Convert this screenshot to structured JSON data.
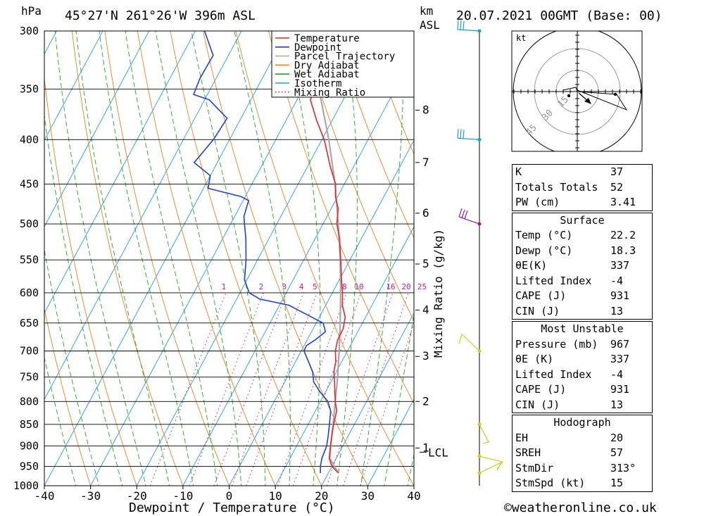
{
  "header": {
    "pressure_unit": "hPa",
    "location": "45°27'N  261°26'W  396m  ASL",
    "height_unit": "km",
    "height_ref": "ASL",
    "datetime": "20.07.2021  00GMT  (Base: 00)"
  },
  "colors": {
    "temperature": "#e8242a",
    "dewpoint": "#1f3fd6",
    "parcel": "#a9a9a9",
    "dry_adiabat": "#e8821e",
    "wet_adiabat": "#1ea81e",
    "isotherm": "#1f9fe0",
    "mixing_ratio": "#c81a8c",
    "wind_cyan": "#1aa0d8",
    "wind_purple": "#8020a0",
    "wind_yellow": "#c8d020"
  },
  "chart_data": {
    "type": "skew-t",
    "xlabel": "Dewpoint / Temperature (°C)",
    "x_ticks": [
      -40,
      -30,
      -20,
      -10,
      0,
      10,
      20,
      30,
      40
    ],
    "xlim": [
      -40,
      40
    ],
    "pressure_ticks": [
      300,
      350,
      400,
      450,
      500,
      550,
      600,
      650,
      700,
      750,
      800,
      850,
      900,
      950,
      1000
    ],
    "plim": [
      1000,
      300
    ],
    "height_ticks": [
      {
        "label": "8",
        "p": 370
      },
      {
        "label": "7",
        "p": 425
      },
      {
        "label": "6",
        "p": 486
      },
      {
        "label": "5",
        "p": 556
      },
      {
        "label": "4",
        "p": 628
      },
      {
        "label": "3",
        "p": 710
      },
      {
        "label": "2",
        "p": 800
      },
      {
        "label": "1",
        "p": 905
      }
    ],
    "lcl_label": "LCL",
    "lcl_p": 915,
    "mixing_ratio_label": "Mixing Ratio (g/kg)",
    "mixing_ratio_values": [
      "1",
      "2",
      "3",
      "4",
      "5",
      "8",
      "10",
      "16",
      "20",
      "25"
    ],
    "legend": [
      {
        "name": "Temperature",
        "style": "solid",
        "color": "#e8242a"
      },
      {
        "name": "Dewpoint",
        "style": "solid",
        "color": "#1f3fd6"
      },
      {
        "name": "Parcel Trajectory",
        "style": "solid",
        "color": "#a9a9a9"
      },
      {
        "name": "Dry Adiabat",
        "style": "solid",
        "color": "#e8821e"
      },
      {
        "name": "Wet Adiabat",
        "style": "solid",
        "color": "#1ea81e"
      },
      {
        "name": "Isotherm",
        "style": "solid",
        "color": "#1f9fe0"
      },
      {
        "name": "Mixing Ratio",
        "style": "dotted",
        "color": "#c81a8c"
      }
    ],
    "series": [
      {
        "name": "Temperature",
        "points": [
          [
            967,
            22.2
          ],
          [
            950,
            20.0
          ],
          [
            930,
            18.5
          ],
          [
            900,
            17.3
          ],
          [
            870,
            16.2
          ],
          [
            850,
            15.5
          ],
          [
            820,
            14.6
          ],
          [
            800,
            13.2
          ],
          [
            780,
            12.0
          ],
          [
            760,
            10.8
          ],
          [
            740,
            9.5
          ],
          [
            720,
            8.7
          ],
          [
            700,
            7.4
          ],
          [
            680,
            6.6
          ],
          [
            660,
            6.5
          ],
          [
            640,
            5.6
          ],
          [
            620,
            3.6
          ],
          [
            600,
            2.2
          ],
          [
            580,
            0.5
          ],
          [
            550,
            -2.0
          ],
          [
            520,
            -4.7
          ],
          [
            500,
            -7.0
          ],
          [
            480,
            -8.5
          ],
          [
            465,
            -10.5
          ],
          [
            450,
            -11.9
          ],
          [
            430,
            -15.0
          ],
          [
            400,
            -19.5
          ],
          [
            380,
            -23.4
          ],
          [
            360,
            -27.1
          ],
          [
            345,
            -27.7
          ],
          [
            330,
            -30.8
          ],
          [
            315,
            -34.3
          ],
          [
            300,
            -37.2
          ]
        ]
      },
      {
        "name": "Dewpoint",
        "points": [
          [
            967,
            18.3
          ],
          [
            950,
            17.5
          ],
          [
            930,
            16.9
          ],
          [
            900,
            16.5
          ],
          [
            880,
            15.8
          ],
          [
            850,
            14.6
          ],
          [
            820,
            13.3
          ],
          [
            800,
            11.6
          ],
          [
            780,
            8.8
          ],
          [
            760,
            6.3
          ],
          [
            740,
            4.9
          ],
          [
            720,
            2.8
          ],
          [
            700,
            0.6
          ],
          [
            690,
            0.5
          ],
          [
            680,
            1.7
          ],
          [
            665,
            3.0
          ],
          [
            650,
            1.5
          ],
          [
            630,
            -4.8
          ],
          [
            620,
            -8.0
          ],
          [
            610,
            -15.0
          ],
          [
            600,
            -18.0
          ],
          [
            580,
            -20.5
          ],
          [
            550,
            -22.5
          ],
          [
            520,
            -25.0
          ],
          [
            500,
            -27.0
          ],
          [
            490,
            -28.0
          ],
          [
            470,
            -28.8
          ],
          [
            465,
            -31.0
          ],
          [
            455,
            -39.0
          ],
          [
            440,
            -40.0
          ],
          [
            425,
            -45.0
          ],
          [
            400,
            -43.5
          ],
          [
            378,
            -43.0
          ],
          [
            360,
            -49.0
          ],
          [
            355,
            -53.0
          ],
          [
            340,
            -53.5
          ],
          [
            320,
            -53.3
          ],
          [
            300,
            -58.0
          ]
        ]
      },
      {
        "name": "Parcel Trajectory",
        "points": [
          [
            967,
            22.2
          ],
          [
            930,
            18.6
          ],
          [
            915,
            18.0
          ],
          [
            880,
            16.6
          ],
          [
            850,
            15.4
          ],
          [
            800,
            13.2
          ],
          [
            750,
            10.9
          ],
          [
            700,
            8.2
          ],
          [
            650,
            5.2
          ],
          [
            600,
            1.8
          ],
          [
            550,
            -2.1
          ],
          [
            500,
            -6.7
          ],
          [
            450,
            -12.0
          ],
          [
            400,
            -18.5
          ],
          [
            350,
            -26.5
          ],
          [
            300,
            -36.0
          ]
        ]
      }
    ],
    "wind_barbs": [
      {
        "p": 300,
        "color": "#1aa0d8"
      },
      {
        "p": 400,
        "color": "#1aa0d8"
      },
      {
        "p": 500,
        "color": "#8020a0"
      },
      {
        "p": 700,
        "color": "#c8d020"
      },
      {
        "p": 850,
        "color": "#c8d020"
      },
      {
        "p": 925,
        "color": "#c8d020"
      },
      {
        "p": 967,
        "color": "#c8d020"
      }
    ],
    "hodograph": {
      "unit": "kt",
      "ring_labels": [
        "15",
        "30",
        "45"
      ]
    }
  },
  "indices": {
    "rows": [
      {
        "label": "K",
        "value": "37"
      },
      {
        "label": "Totals Totals",
        "value": "52"
      },
      {
        "label": "PW (cm)",
        "value": "3.41"
      }
    ]
  },
  "surface": {
    "title": "Surface",
    "rows": [
      {
        "label": "Temp (°C)",
        "value": "22.2"
      },
      {
        "label": "Dewp (°C)",
        "value": "18.3"
      },
      {
        "label": "θE(K)",
        "value": "337"
      },
      {
        "label": "Lifted Index",
        "value": "-4"
      },
      {
        "label": "CAPE (J)",
        "value": "931"
      },
      {
        "label": "CIN (J)",
        "value": "13"
      }
    ]
  },
  "most_unstable": {
    "title": "Most Unstable",
    "rows": [
      {
        "label": "Pressure (mb)",
        "value": "967"
      },
      {
        "label": "θE (K)",
        "value": "337"
      },
      {
        "label": "Lifted Index",
        "value": "-4"
      },
      {
        "label": "CAPE (J)",
        "value": "931"
      },
      {
        "label": "CIN (J)",
        "value": "13"
      }
    ]
  },
  "hodograph_box": {
    "title": "Hodograph",
    "rows": [
      {
        "label": "EH",
        "value": "20"
      },
      {
        "label": "SREH",
        "value": "57"
      },
      {
        "label": "StmDir",
        "value": "313°"
      },
      {
        "label": "StmSpd (kt)",
        "value": "15"
      }
    ]
  },
  "footer": {
    "copyright": "©weatheronline.co.uk"
  }
}
